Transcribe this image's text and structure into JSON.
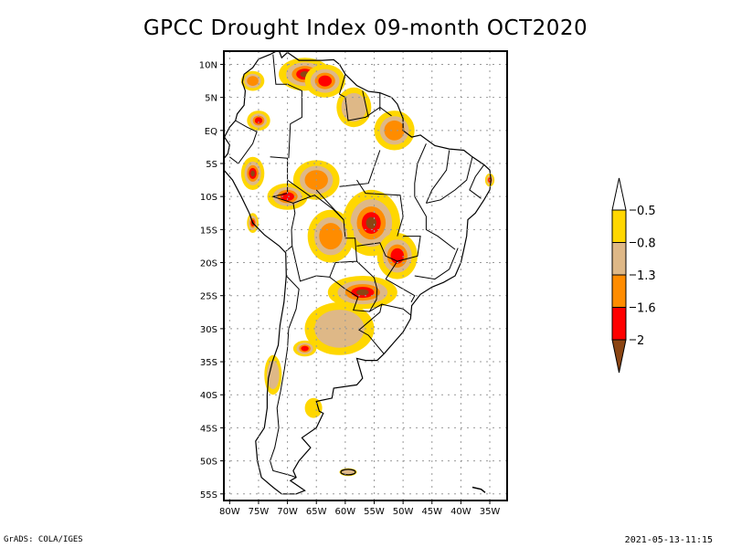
{
  "title": "GPCC Drought Index 09-month OCT2020",
  "footer": {
    "left": "GrADS: COLA/IGES",
    "right": "2021-05-13-11:15"
  },
  "chart_data": {
    "type": "heatmap",
    "title": "GPCC Drought Index 09-month OCT2020",
    "region": "South America",
    "lon_range": [
      -81,
      -32
    ],
    "lat_range": [
      -56,
      12
    ],
    "lon_ticks": [
      {
        "value": -80,
        "label": "80W"
      },
      {
        "value": -75,
        "label": "75W"
      },
      {
        "value": -70,
        "label": "70W"
      },
      {
        "value": -65,
        "label": "65W"
      },
      {
        "value": -60,
        "label": "60W"
      },
      {
        "value": -55,
        "label": "55W"
      },
      {
        "value": -50,
        "label": "50W"
      },
      {
        "value": -45,
        "label": "45W"
      },
      {
        "value": -40,
        "label": "40W"
      },
      {
        "value": -35,
        "label": "35W"
      }
    ],
    "lat_ticks": [
      {
        "value": 10,
        "label": "10N"
      },
      {
        "value": 5,
        "label": "5N"
      },
      {
        "value": 0,
        "label": "EQ"
      },
      {
        "value": -5,
        "label": "5S"
      },
      {
        "value": -10,
        "label": "10S"
      },
      {
        "value": -15,
        "label": "15S"
      },
      {
        "value": -20,
        "label": "20S"
      },
      {
        "value": -25,
        "label": "25S"
      },
      {
        "value": -30,
        "label": "30S"
      },
      {
        "value": -35,
        "label": "35S"
      },
      {
        "value": -40,
        "label": "40S"
      },
      {
        "value": -45,
        "label": "45S"
      },
      {
        "value": -50,
        "label": "50S"
      },
      {
        "value": -55,
        "label": "55S"
      }
    ],
    "grid": true,
    "colorbar": {
      "placement": "right",
      "levels": [
        {
          "label": "-0.5",
          "value": -0.5
        },
        {
          "label": "-0.8",
          "value": -0.8
        },
        {
          "label": "-1.3",
          "value": -1.3
        },
        {
          "label": "-1.6",
          "value": -1.6
        },
        {
          "label": "-2",
          "value": -2
        }
      ],
      "colors": [
        {
          "range": "> -0.5",
          "color": "#ffffff"
        },
        {
          "range": "-0.8 to -0.5",
          "color": "#ffd700"
        },
        {
          "range": "-1.3 to -0.8",
          "color": "#deb887"
        },
        {
          "range": "-1.6 to -1.3",
          "color": "#ff8c00"
        },
        {
          "range": "-2 to -1.6",
          "color": "#ff0000"
        },
        {
          "range": "< -2",
          "color": "#8b4513"
        }
      ]
    },
    "drought_regions": [
      {
        "name": "Venezuela north",
        "lon": -67,
        "lat": 8.5,
        "rx": 4.5,
        "ry": 2.5,
        "peak_level": 5
      },
      {
        "name": "Venezuela east",
        "lon": -63.5,
        "lat": 7.5,
        "rx": 3.5,
        "ry": 2.5,
        "peak_level": 4
      },
      {
        "name": "Colombia north",
        "lon": -76,
        "lat": 7.5,
        "rx": 2,
        "ry": 1.5,
        "peak_level": 3
      },
      {
        "name": "Guyana",
        "lon": -58.5,
        "lat": 3.5,
        "rx": 3,
        "ry": 3,
        "peak_level": 2
      },
      {
        "name": "Amapa/Para mouth",
        "lon": -51.5,
        "lat": 0,
        "rx": 3.5,
        "ry": 3,
        "peak_level": 3
      },
      {
        "name": "Colombia south",
        "lon": -75,
        "lat": 1.5,
        "rx": 2,
        "ry": 1.5,
        "peak_level": 4
      },
      {
        "name": "Peru north",
        "lon": -76,
        "lat": -6.5,
        "rx": 2,
        "ry": 2.5,
        "peak_level": 5
      },
      {
        "name": "Amazonas central",
        "lon": -65,
        "lat": -7.5,
        "rx": 4,
        "ry": 3,
        "peak_level": 3
      },
      {
        "name": "Acre/Rondonia",
        "lon": -70,
        "lat": -10,
        "rx": 3.5,
        "ry": 2,
        "peak_level": 4
      },
      {
        "name": "Mato Grosso",
        "lon": -55.5,
        "lat": -14,
        "rx": 5,
        "ry": 5,
        "peak_level": 5
      },
      {
        "name": "Goias/Minas",
        "lon": -51,
        "lat": -19,
        "rx": 3.5,
        "ry": 3.5,
        "peak_level": 4
      },
      {
        "name": "Bolivia",
        "lon": -62.5,
        "lat": -16,
        "rx": 4,
        "ry": 4,
        "peak_level": 3
      },
      {
        "name": "Paraguay/Parana",
        "lon": -57,
        "lat": -24.5,
        "rx": 6,
        "ry": 2.5,
        "peak_level": 5
      },
      {
        "name": "Argentina north",
        "lon": -61,
        "lat": -30,
        "rx": 6,
        "ry": 4,
        "peak_level": 2
      },
      {
        "name": "Argentina center",
        "lon": -67,
        "lat": -33,
        "rx": 2,
        "ry": 1.2,
        "peak_level": 4
      },
      {
        "name": "Peru coast",
        "lon": -76,
        "lat": -14,
        "rx": 1,
        "ry": 1.5,
        "peak_level": 5
      },
      {
        "name": "Chile central",
        "lon": -72.5,
        "lat": -37,
        "rx": 1.5,
        "ry": 3,
        "peak_level": 2
      },
      {
        "name": "Patagonia",
        "lon": -65.5,
        "lat": -42,
        "rx": 1.5,
        "ry": 1.5,
        "peak_level": 1
      },
      {
        "name": "Falklands",
        "lon": -59.5,
        "lat": -51.7,
        "rx": 1.5,
        "ry": 0.6,
        "peak_level": 2
      },
      {
        "name": "Brazil NE tip",
        "lon": -35,
        "lat": -7.5,
        "rx": 0.8,
        "ry": 1,
        "peak_level": 4
      }
    ]
  }
}
